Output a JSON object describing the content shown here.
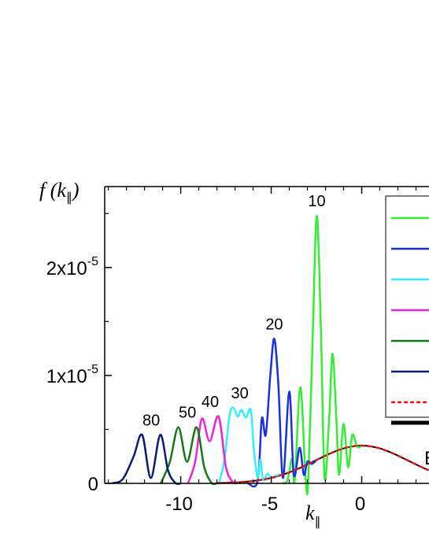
{
  "chart_data": {
    "type": "line",
    "ylabel": {
      "main": "f (k",
      "sub": "∥",
      "end": ")"
    },
    "xlabel": {
      "main": "k",
      "sub": "∥"
    },
    "annotation": "E",
    "xlim": [
      -14.2,
      3.74
    ],
    "ylim": [
      0,
      2.75e-05
    ],
    "xticks": [
      -10,
      -5,
      0
    ],
    "x_minor_ticks": [
      -14,
      -13,
      -12,
      -11,
      -9,
      -8,
      -7,
      -6,
      -4,
      -3,
      -2,
      -1,
      1,
      2,
      3
    ],
    "yticks": [
      0,
      {
        "value": 1e-05,
        "label": "1x10",
        "exponent": "-5"
      },
      {
        "value": 2e-05,
        "label": "2x10",
        "exponent": "-5"
      }
    ],
    "y_minor_ticks": [
      5e-06,
      1.5e-05,
      2.5e-05
    ],
    "series": [
      {
        "color": "#33ee33",
        "label": "10",
        "x": [
          -4.4,
          -4.1,
          -3.85,
          -3.7,
          -3.39,
          -3.1,
          -2.95,
          -2.7,
          -2.48,
          -2.25,
          -2.05,
          -1.8,
          -1.61,
          -1.4,
          -1.25,
          -1.0,
          -0.75,
          -0.52,
          -0.25,
          0
        ],
        "values": [
          0,
          3e-07,
          2.3e-06,
          3e-07,
          8.9e-06,
          5e-07,
          3e-07,
          1.4e-05,
          2.48e-05,
          1.4e-05,
          5e-07,
          6e-06,
          1.2e-05,
          6e-06,
          8e-07,
          5.5e-06,
          1.5e-06,
          4.5e-06,
          3.4e-06,
          3.5e-06
        ]
      },
      {
        "color": "#1a2ee6",
        "label": "20",
        "x": [
          -6.3,
          -5.75,
          -5.52,
          -5.3,
          -5.05,
          -4.83,
          -4.6,
          -4.35,
          -4.0,
          -3.75,
          -3.43,
          -3.2,
          -3.0,
          -2.75,
          -2.5
        ],
        "values": [
          0,
          2e-07,
          6e-06,
          4.5e-06,
          1e-05,
          1.34e-05,
          9e-06,
          5e-07,
          8.5e-06,
          8e-07,
          3.3e-06,
          8e-07,
          2e-06,
          1.8e-06,
          2.16e-06
        ]
      },
      {
        "color": "#33eeff",
        "label": "30",
        "x": [
          -7.9,
          -7.6,
          -7.3,
          -7.09,
          -6.85,
          -6.65,
          -6.4,
          -6.13,
          -5.95,
          -5.75,
          -5.6,
          -5.45,
          -5.2,
          -5.0,
          -4.6,
          -4.5
        ],
        "values": [
          0,
          2e-06,
          6.3e-06,
          7e-06,
          6.2e-06,
          6.8e-06,
          6.1e-06,
          6.8e-06,
          3e-06,
          5e-07,
          2.2e-06,
          3e-07,
          9e-07,
          5e-07,
          8e-07,
          7.4e-07
        ]
      },
      {
        "color": "#ee22dd",
        "label": "40",
        "x": [
          -9.6,
          -9.2,
          -8.83,
          -8.4,
          -7.91,
          -7.5,
          -7.1,
          -6.8
        ],
        "values": [
          0,
          2e-06,
          6e-06,
          3.9e-06,
          6.2e-06,
          1.5e-06,
          1e-07,
          1e-07
        ]
      },
      {
        "color": "#117a11",
        "label": "50",
        "x": [
          -11.1,
          -10.6,
          -10.13,
          -9.65,
          -9.13,
          -8.7,
          -8.3,
          -8.0
        ],
        "values": [
          0,
          2e-06,
          5.2e-06,
          2e-06,
          5.2e-06,
          1.5e-06,
          5e-08,
          0
        ]
      },
      {
        "color": "#0a1a7a",
        "label": "80",
        "x": [
          -13.8,
          -13.2,
          -12.6,
          -12.13,
          -11.65,
          -11.13,
          -10.7,
          -10.3,
          -10.0
        ],
        "values": [
          0,
          4e-07,
          2.5e-06,
          4.5e-06,
          5e-07,
          4.5e-06,
          1.2e-06,
          5e-08,
          0
        ]
      },
      {
        "color": "#ee1111",
        "dashed": true,
        "x": [
          -8,
          -7.5,
          -7,
          -6.5,
          -6,
          -5.5,
          -5,
          -4.5,
          -4,
          -3.5,
          -3,
          -2.5,
          -2,
          -1.5,
          -1,
          -0.5,
          0,
          0.5,
          1,
          1.5,
          2,
          2.5,
          3,
          3.5,
          3.7
        ],
        "values": [
          3e-08,
          4.6e-08,
          8e-08,
          1.4e-07,
          2.2e-07,
          3.4e-07,
          5.1e-07,
          7.4e-07,
          1.02e-06,
          1.36e-06,
          1.75e-06,
          2.16e-06,
          2.57e-06,
          2.94e-06,
          3.24e-06,
          3.43e-06,
          3.5e-06,
          3.43e-06,
          3.24e-06,
          2.94e-06,
          2.57e-06,
          2.16e-06,
          1.75e-06,
          1.36e-06,
          1.22e-06
        ]
      },
      {
        "color": "#000000",
        "thick": true,
        "x": [
          -8,
          -7.5,
          -7,
          -6.5,
          -6,
          -5.5,
          -5,
          -4.5,
          -4,
          -3.5,
          -3,
          -2.5,
          -2,
          -1.5,
          -1,
          -0.5,
          0,
          0.5,
          1,
          1.5,
          2,
          2.5,
          3,
          3.5,
          3.7
        ],
        "values": [
          3e-08,
          4.6e-08,
          8e-08,
          1.4e-07,
          2.2e-07,
          3.4e-07,
          5.1e-07,
          7.4e-07,
          1.02e-06,
          1.36e-06,
          1.75e-06,
          2.16e-06,
          2.57e-06,
          2.94e-06,
          3.24e-06,
          3.43e-06,
          3.5e-06,
          3.43e-06,
          3.24e-06,
          2.94e-06,
          2.57e-06,
          2.16e-06,
          1.75e-06,
          1.36e-06,
          1.22e-06
        ]
      }
    ]
  }
}
